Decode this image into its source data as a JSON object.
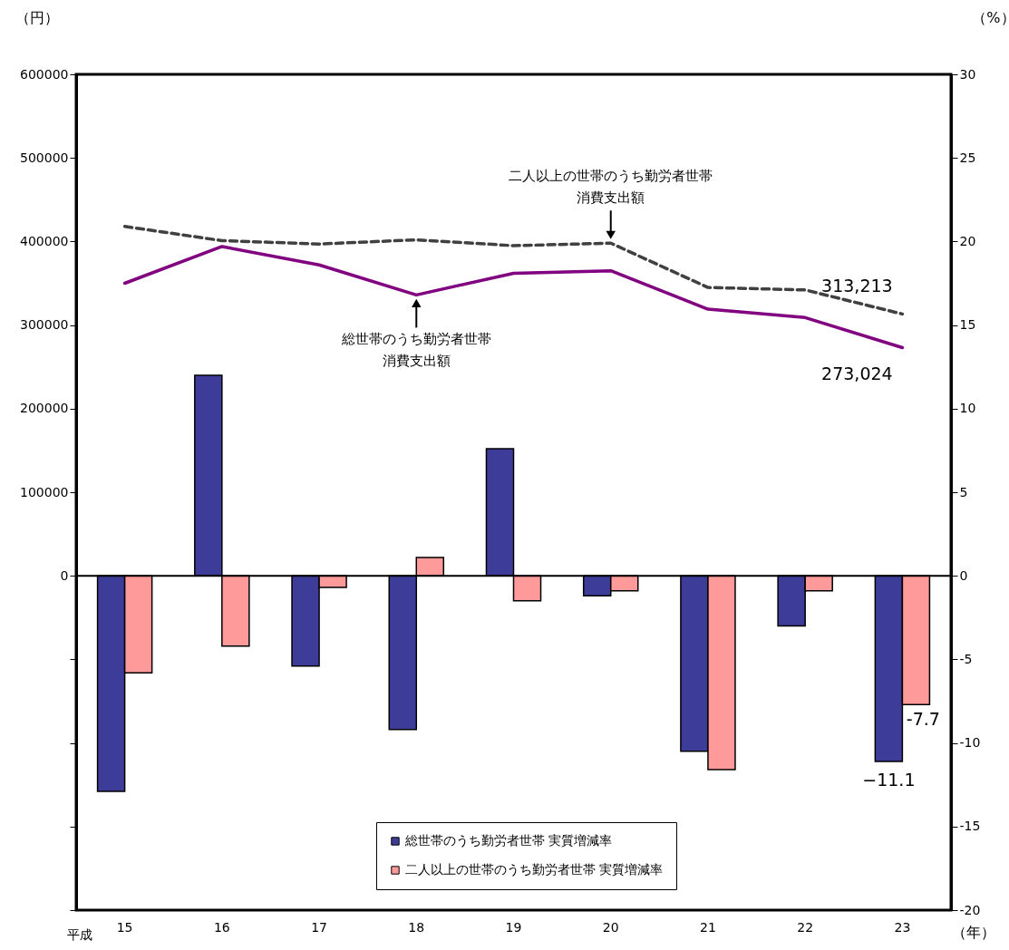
{
  "chart_data": {
    "type": "bar",
    "categories": [
      "15",
      "16",
      "17",
      "18",
      "19",
      "20",
      "21",
      "22",
      "23"
    ],
    "ylabel": "（円）",
    "y2label": "（%）",
    "xlabel": "（年）",
    "ylim": [
      -400000,
      600000
    ],
    "yticks": [
      {
        "value": -400000,
        "label": null
      },
      {
        "value": -300000,
        "label": null
      },
      {
        "value": -200000,
        "label": null
      },
      {
        "value": -100000,
        "label": null
      },
      0,
      100000,
      200000,
      300000,
      400000,
      500000,
      600000
    ],
    "y2lim": [
      -20,
      30
    ],
    "y2ticks": [
      -20,
      -15,
      -10,
      -5,
      0,
      5,
      10,
      15,
      20,
      25,
      30
    ],
    "series": [
      {
        "name": "総世帯のうち勤労者世帯 実質増減率",
        "axis": "y2",
        "color": "#3d3d99",
        "values": [
          -12.9,
          12.0,
          -5.4,
          -9.2,
          7.6,
          -1.2,
          -10.5,
          -3.0,
          -11.1
        ],
        "value_labels": [
          null,
          null,
          null,
          null,
          null,
          null,
          null,
          null,
          "−11.1"
        ]
      },
      {
        "name": "二人以上の世帯のうち勤労者世帯 実質増減率",
        "axis": "y2",
        "color": "#ff9a9a",
        "values": [
          -5.8,
          -4.2,
          -0.7,
          1.1,
          -1.5,
          -0.9,
          -11.6,
          -0.9,
          -7.7
        ],
        "value_labels": [
          null,
          null,
          null,
          null,
          null,
          null,
          null,
          null,
          "-7.7"
        ]
      },
      {
        "type": "line",
        "line_style": "dashed",
        "color": "#404040",
        "values": [
          418000,
          401000,
          397000,
          402000,
          395000,
          398000,
          345000,
          342000,
          313213
        ],
        "value_labels": [
          null,
          null,
          null,
          null,
          null,
          null,
          null,
          null,
          "313,213"
        ]
      },
      {
        "type": "line",
        "line_style": "solid",
        "color": "#800080",
        "values": [
          350000,
          394000,
          372000,
          336000,
          362000,
          365000,
          319000,
          309000,
          273024
        ],
        "value_labels": [
          null,
          null,
          null,
          null,
          null,
          null,
          null,
          null,
          "273,024"
        ]
      }
    ],
    "annotations": [
      {
        "text": "二人以上の世帯のうち勤労者世帯消費支出額",
        "x": "20",
        "y": 398000
      },
      {
        "text": "総世帯のうち勤労者世帯消費支出額",
        "x": "18",
        "y": 336000
      },
      "平成"
    ],
    "ref_lines": [
      {
        "axis": "y2",
        "value": 0,
        "color": "#000000"
      }
    ],
    "legend": "bottom",
    "grid": false,
    "marker": "none"
  }
}
